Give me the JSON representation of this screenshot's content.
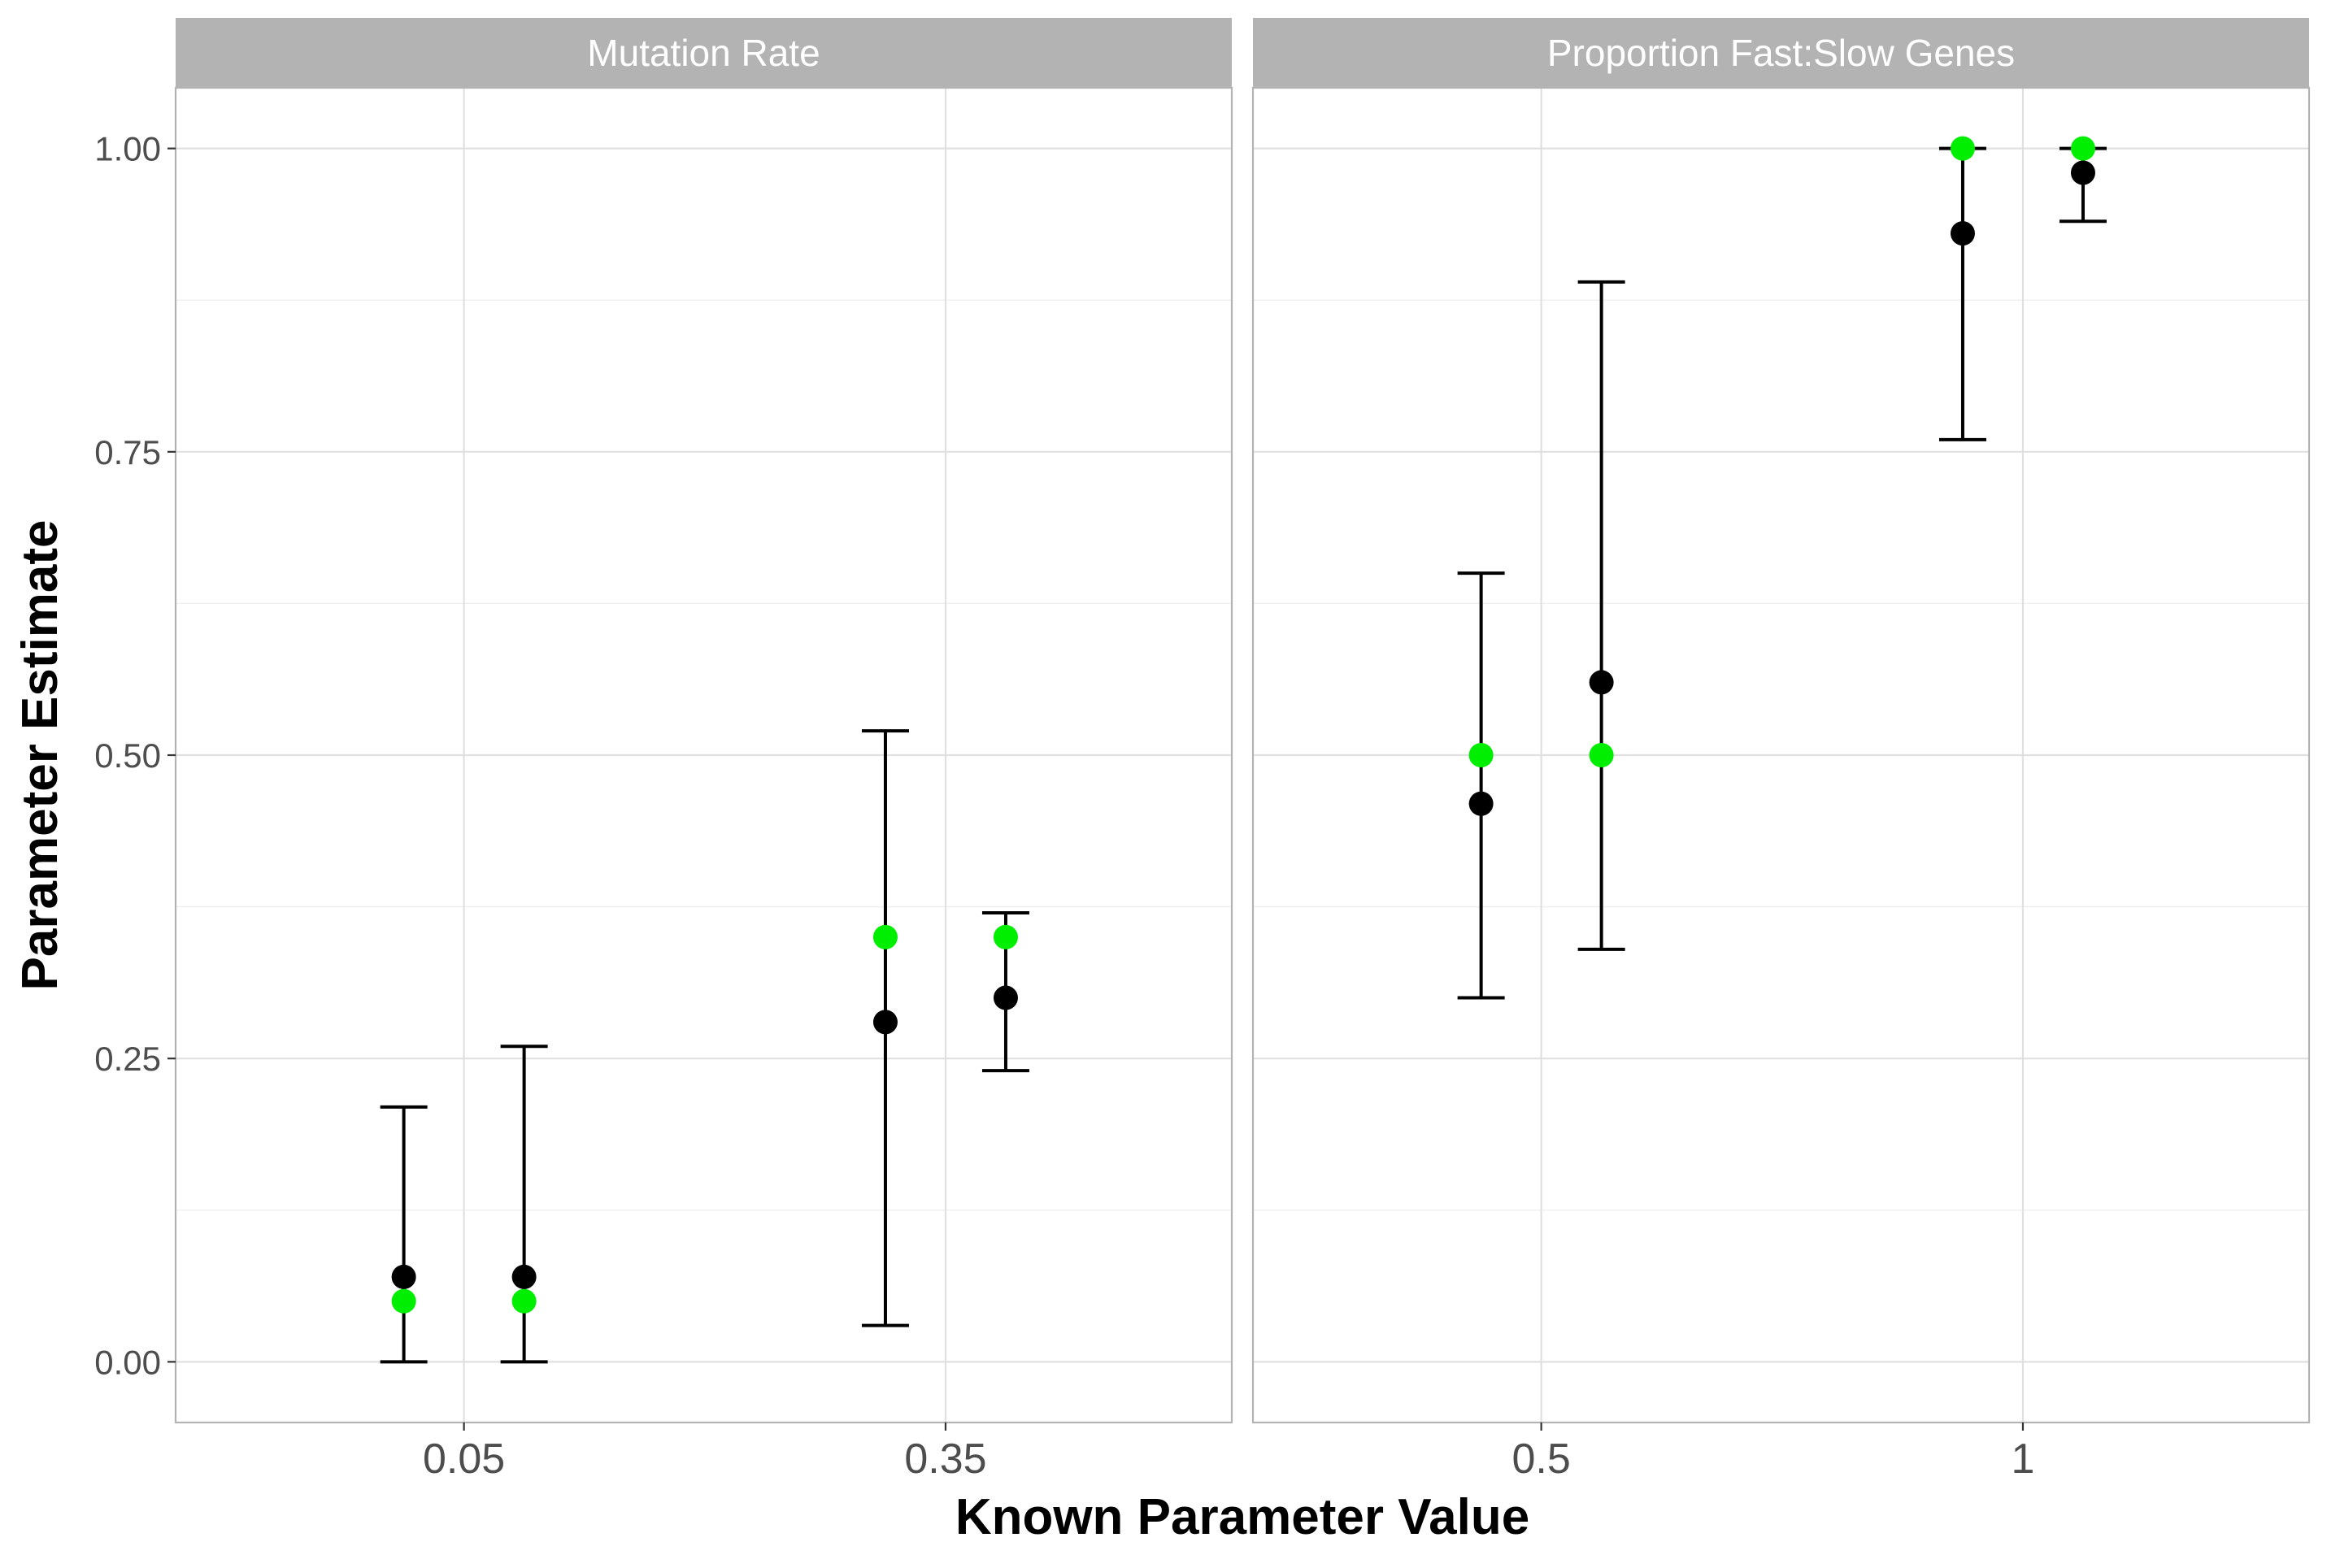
{
  "chart_data": {
    "type": "scatter",
    "xlabel": "Known Parameter Value",
    "ylabel": "Parameter Estimate",
    "ylim": [
      -0.05,
      1.05
    ],
    "yticks": [
      "0.00",
      "0.25",
      "0.50",
      "0.75",
      "1.00"
    ],
    "grid": true,
    "legend": "none",
    "colors": {
      "estimate": "#000000",
      "known": "#00ee00"
    },
    "panels": [
      {
        "title": "Mutation Rate",
        "categories": [
          "0.05",
          "0.35"
        ],
        "points": [
          {
            "category": "0.05",
            "offset": -1,
            "estimate": 0.07,
            "lower": 0.0,
            "upper": 0.21,
            "known": 0.05
          },
          {
            "category": "0.05",
            "offset": 1,
            "estimate": 0.07,
            "lower": 0.0,
            "upper": 0.26,
            "known": 0.05
          },
          {
            "category": "0.35",
            "offset": -1,
            "estimate": 0.28,
            "lower": 0.03,
            "upper": 0.52,
            "known": 0.35
          },
          {
            "category": "0.35",
            "offset": 1,
            "estimate": 0.3,
            "lower": 0.24,
            "upper": 0.37,
            "known": 0.35
          }
        ]
      },
      {
        "title": "Proportion Fast:Slow Genes",
        "categories": [
          "0.5",
          "1"
        ],
        "points": [
          {
            "category": "0.5",
            "offset": -1,
            "estimate": 0.46,
            "lower": 0.3,
            "upper": 0.65,
            "known": 0.5
          },
          {
            "category": "0.5",
            "offset": 1,
            "estimate": 0.56,
            "lower": 0.34,
            "upper": 0.89,
            "known": 0.5
          },
          {
            "category": "1",
            "offset": -1,
            "estimate": 0.93,
            "lower": 0.76,
            "upper": 1.0,
            "known": 1.0
          },
          {
            "category": "1",
            "offset": 1,
            "estimate": 0.98,
            "lower": 0.94,
            "upper": 1.0,
            "known": 1.0
          }
        ]
      }
    ]
  }
}
